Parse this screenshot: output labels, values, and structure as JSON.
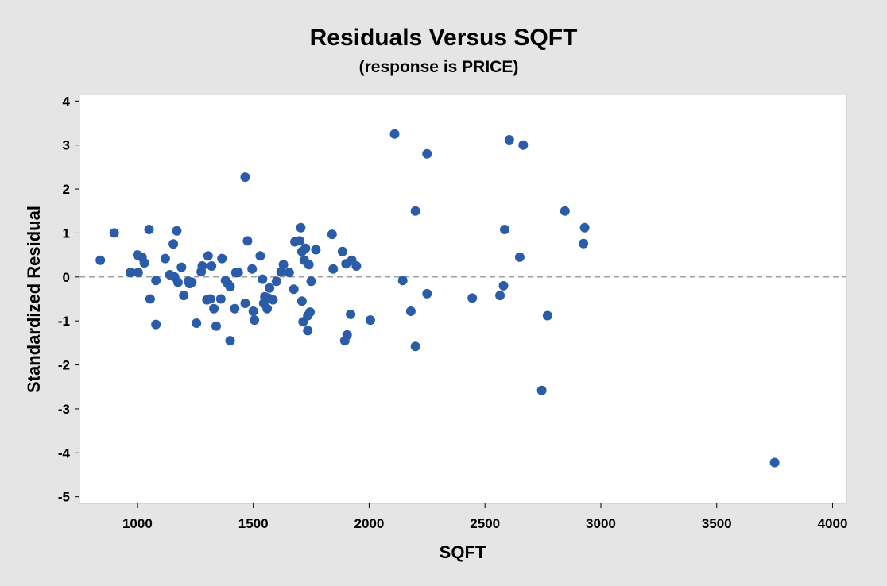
{
  "chart_data": {
    "type": "scatter",
    "title": "Residuals Versus SQFT",
    "subtitle": "(response is PRICE)",
    "xlabel": "SQFT",
    "ylabel": "Standardized Residual",
    "xlim": [
      750,
      4060
    ],
    "ylim": [
      -5.15,
      4.15
    ],
    "xticks": [
      1000,
      1500,
      2000,
      2500,
      3000,
      3500,
      4000
    ],
    "yticks": [
      4,
      3,
      2,
      1,
      0,
      -1,
      -2,
      -3,
      -4,
      -5
    ],
    "reference_line": 0,
    "grid": false,
    "colors": {
      "point": "#2b5ca8",
      "reference": "#a0a0a0",
      "plot_bg": "#ffffff",
      "page_bg": "#e5e5e5"
    },
    "points": [
      [
        840,
        0.38
      ],
      [
        900,
        1.0
      ],
      [
        970,
        0.1
      ],
      [
        1000,
        0.5
      ],
      [
        1003,
        0.1
      ],
      [
        1020,
        0.45
      ],
      [
        1030,
        0.32
      ],
      [
        1050,
        1.08
      ],
      [
        1055,
        -0.5
      ],
      [
        1080,
        -0.08
      ],
      [
        1080,
        -1.08
      ],
      [
        1120,
        0.42
      ],
      [
        1140,
        0.05
      ],
      [
        1155,
        0.75
      ],
      [
        1160,
        0.0
      ],
      [
        1170,
        1.05
      ],
      [
        1175,
        -0.12
      ],
      [
        1190,
        0.22
      ],
      [
        1200,
        -0.42
      ],
      [
        1220,
        -0.1
      ],
      [
        1225,
        -0.15
      ],
      [
        1235,
        -0.12
      ],
      [
        1255,
        -1.05
      ],
      [
        1275,
        0.12
      ],
      [
        1280,
        0.25
      ],
      [
        1300,
        -0.52
      ],
      [
        1305,
        0.48
      ],
      [
        1315,
        -0.5
      ],
      [
        1320,
        0.25
      ],
      [
        1330,
        -0.72
      ],
      [
        1340,
        -1.12
      ],
      [
        1360,
        -0.5
      ],
      [
        1365,
        0.42
      ],
      [
        1380,
        -0.08
      ],
      [
        1390,
        -0.15
      ],
      [
        1400,
        -0.22
      ],
      [
        1400,
        -1.45
      ],
      [
        1420,
        -0.72
      ],
      [
        1425,
        0.1
      ],
      [
        1435,
        0.1
      ],
      [
        1465,
        2.27
      ],
      [
        1465,
        -0.6
      ],
      [
        1475,
        0.82
      ],
      [
        1495,
        0.18
      ],
      [
        1500,
        -0.78
      ],
      [
        1505,
        -0.98
      ],
      [
        1530,
        0.48
      ],
      [
        1540,
        -0.05
      ],
      [
        1545,
        -0.6
      ],
      [
        1550,
        -0.45
      ],
      [
        1560,
        -0.72
      ],
      [
        1565,
        -0.48
      ],
      [
        1570,
        -0.25
      ],
      [
        1585,
        -0.52
      ],
      [
        1600,
        -0.1
      ],
      [
        1620,
        0.12
      ],
      [
        1630,
        0.28
      ],
      [
        1655,
        0.1
      ],
      [
        1675,
        -0.28
      ],
      [
        1680,
        0.8
      ],
      [
        1700,
        0.82
      ],
      [
        1705,
        1.12
      ],
      [
        1710,
        0.58
      ],
      [
        1710,
        -0.55
      ],
      [
        1715,
        -1.02
      ],
      [
        1720,
        0.38
      ],
      [
        1725,
        0.65
      ],
      [
        1735,
        -0.88
      ],
      [
        1735,
        -1.22
      ],
      [
        1740,
        0.28
      ],
      [
        1745,
        -0.8
      ],
      [
        1750,
        -0.1
      ],
      [
        1770,
        0.62
      ],
      [
        1840,
        0.97
      ],
      [
        1845,
        0.18
      ],
      [
        1885,
        0.58
      ],
      [
        1895,
        -1.45
      ],
      [
        1900,
        0.3
      ],
      [
        1905,
        -1.32
      ],
      [
        1920,
        -0.85
      ],
      [
        1925,
        0.38
      ],
      [
        1945,
        0.25
      ],
      [
        2005,
        -0.98
      ],
      [
        2110,
        3.25
      ],
      [
        2145,
        -0.08
      ],
      [
        2180,
        -0.78
      ],
      [
        2200,
        1.5
      ],
      [
        2200,
        -1.58
      ],
      [
        2250,
        2.8
      ],
      [
        2250,
        -0.38
      ],
      [
        2445,
        -0.48
      ],
      [
        2565,
        -0.42
      ],
      [
        2580,
        -0.2
      ],
      [
        2585,
        1.08
      ],
      [
        2605,
        3.12
      ],
      [
        2650,
        0.45
      ],
      [
        2665,
        3.0
      ],
      [
        2745,
        -2.58
      ],
      [
        2770,
        -0.88
      ],
      [
        2845,
        1.5
      ],
      [
        2925,
        0.76
      ],
      [
        2930,
        1.12
      ],
      [
        3750,
        -4.22
      ]
    ]
  }
}
